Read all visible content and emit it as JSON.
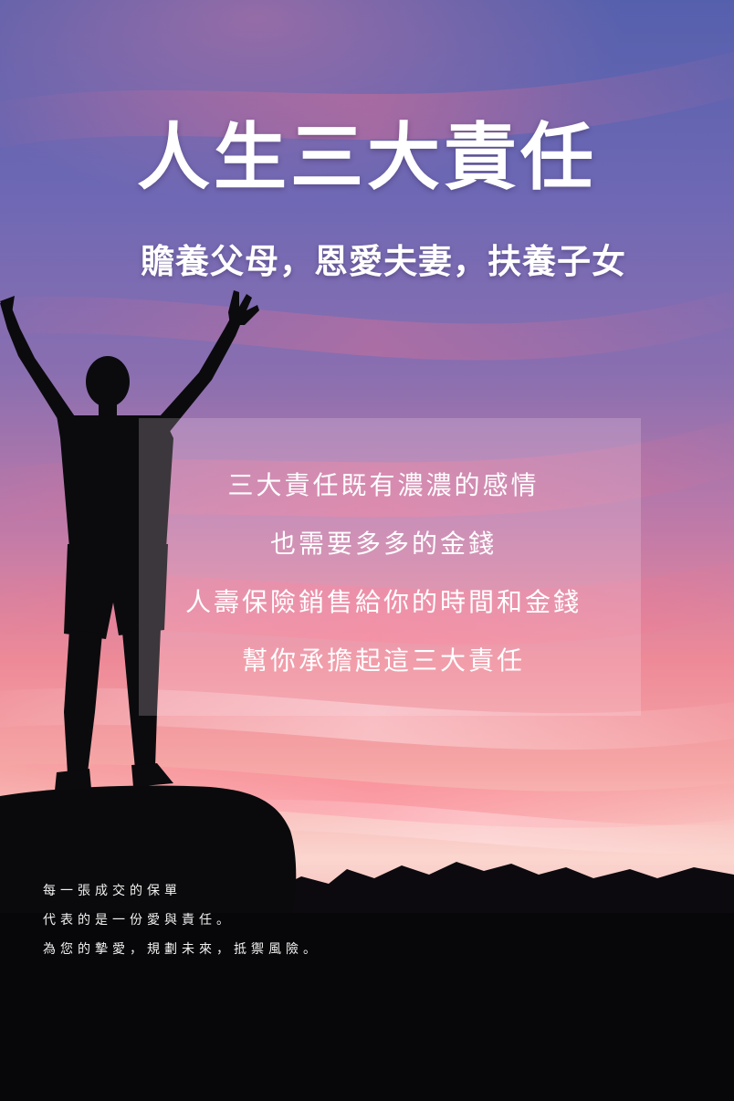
{
  "poster": {
    "title": "人生三大責任",
    "subtitle": "贍養父母，恩愛夫妻，扶養子女",
    "panel_lines": [
      "三大責任既有濃濃的感情",
      "也需要多多的金錢",
      "人壽保險銷售給你的時間和金錢",
      "幫你承擔起這三大責任"
    ],
    "footnote_lines": [
      "每一張成交的保單",
      "代表的是一份愛與責任。",
      "為您的摯愛，規劃未來，抵禦風險。"
    ]
  },
  "colors": {
    "sky_top": "#5b66b3",
    "sky_mid": "#a56aa6",
    "sky_glow": "#f07a8a",
    "horizon": "#fbe0d8",
    "silhouette": "#0a0a0c",
    "text": "#ffffff"
  }
}
